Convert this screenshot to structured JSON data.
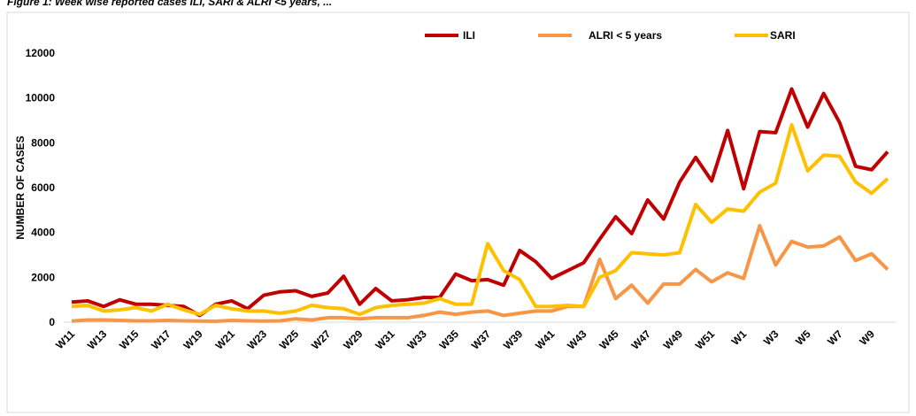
{
  "chart_data": {
    "type": "line",
    "title": "Figure 1: Week wise reported cases ILI, SARI & ALRI <5 years, ...",
    "y_label": "NUMBER OF CASES",
    "categories": [
      "W11",
      null,
      "W13",
      null,
      "W15",
      null,
      "W17",
      null,
      "W19",
      null,
      "W21",
      null,
      "W23",
      null,
      "W25",
      null,
      "W27",
      null,
      "W29",
      null,
      "W31",
      null,
      "W33",
      null,
      "W35",
      null,
      "W37",
      null,
      "W39",
      null,
      "W41",
      null,
      "W43",
      null,
      "W45",
      null,
      "W47",
      null,
      "W49",
      null,
      "W51",
      null,
      "W1",
      null,
      "W3",
      null,
      "W5",
      null,
      "W7",
      null,
      "W9",
      null
    ],
    "series": [
      {
        "name": "ILI",
        "color": "#c00000",
        "values": [
          900,
          950,
          700,
          1000,
          800,
          800,
          750,
          700,
          300,
          800,
          950,
          600,
          1200,
          1350,
          1400,
          1150,
          1300,
          2050,
          800,
          1500,
          950,
          1000,
          1100,
          1100,
          2150,
          1850,
          1900,
          1650,
          3200,
          2700,
          1950,
          2300,
          2650,
          3700,
          4700,
          3950,
          5450,
          4600,
          6250,
          7350,
          6300,
          8550,
          5950,
          8500,
          8450,
          10400,
          8700,
          10200,
          8900,
          6950,
          6800,
          7600
        ]
      },
      {
        "name": "ALRI < 5 years",
        "color": "#f79646",
        "values": [
          50,
          100,
          100,
          80,
          60,
          60,
          80,
          60,
          50,
          40,
          80,
          60,
          50,
          60,
          150,
          100,
          200,
          200,
          150,
          200,
          200,
          200,
          300,
          450,
          350,
          450,
          500,
          300,
          400,
          500,
          500,
          700,
          700,
          2800,
          1050,
          1650,
          850,
          1700,
          1700,
          2350,
          1800,
          2200,
          1950,
          4300,
          2550,
          3600,
          3350,
          3400,
          3800,
          2750,
          3050,
          2350
        ]
      },
      {
        "name": "SARI",
        "color": "#ffc000",
        "values": [
          700,
          750,
          500,
          550,
          650,
          500,
          800,
          550,
          350,
          750,
          600,
          500,
          500,
          400,
          500,
          750,
          650,
          600,
          350,
          650,
          750,
          800,
          850,
          1050,
          800,
          800,
          3500,
          2300,
          1900,
          700,
          700,
          750,
          700,
          2000,
          2300,
          3100,
          3050,
          3000,
          3100,
          5250,
          4450,
          5050,
          4950,
          5800,
          6200,
          8800,
          6750,
          7450,
          7400,
          6250,
          5750,
          6400
        ]
      }
    ],
    "ylim": [
      0,
      12000
    ],
    "yticks": [
      0,
      2000,
      4000,
      6000,
      8000,
      10000,
      12000
    ],
    "grid": false,
    "legend": "top"
  }
}
